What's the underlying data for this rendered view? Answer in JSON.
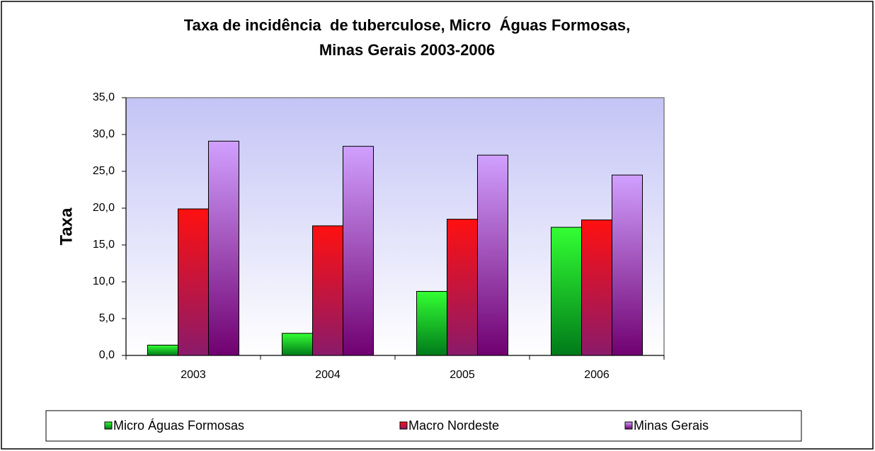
{
  "chart_data": {
    "type": "bar",
    "title": [
      "Taxa de incidência  de tuberculose, Micro  Águas Formosas,",
      "Minas Gerais 2003-2006"
    ],
    "y_label": "Taxa",
    "categories": [
      "2003",
      "2004",
      "2005",
      "2006"
    ],
    "series": [
      {
        "name": "Micro Águas Formosas",
        "color": "#33ff33",
        "color_bottom": "#007a1a",
        "values": [
          1.4,
          3.0,
          8.7,
          17.4
        ]
      },
      {
        "name": "Macro Nordeste",
        "color": "#ff1010",
        "color_bottom": "#8a1a6a",
        "values": [
          19.9,
          17.6,
          18.5,
          18.4
        ]
      },
      {
        "name": "Minas Gerais",
        "color": "#d0a0ff",
        "color_bottom": "#700070",
        "values": [
          29.1,
          28.4,
          27.2,
          24.5
        ]
      }
    ],
    "ylim": [
      0,
      35
    ],
    "yticks": [
      {
        "value": 0,
        "label": "0,0"
      },
      {
        "value": 5,
        "label": "5,0"
      },
      {
        "value": 10,
        "label": "10,0"
      },
      {
        "value": 15,
        "label": "15,0"
      },
      {
        "value": 20,
        "label": "20,0"
      },
      {
        "value": 25,
        "label": "25,0"
      },
      {
        "value": 30,
        "label": "30,0"
      },
      {
        "value": 35,
        "label": "35,0"
      }
    ],
    "legend": "bottom"
  }
}
